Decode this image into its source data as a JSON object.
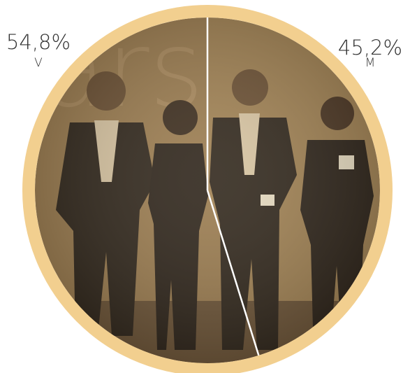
{
  "chart_data": {
    "type": "pie",
    "categories": [
      "V",
      "M"
    ],
    "values": [
      54.8,
      45.2
    ],
    "value_labels": [
      "54,8%",
      "45,2%"
    ],
    "colors": [
      "#9a7a4c",
      "#a08050"
    ],
    "ring_color": "#f2cf8f"
  }
}
